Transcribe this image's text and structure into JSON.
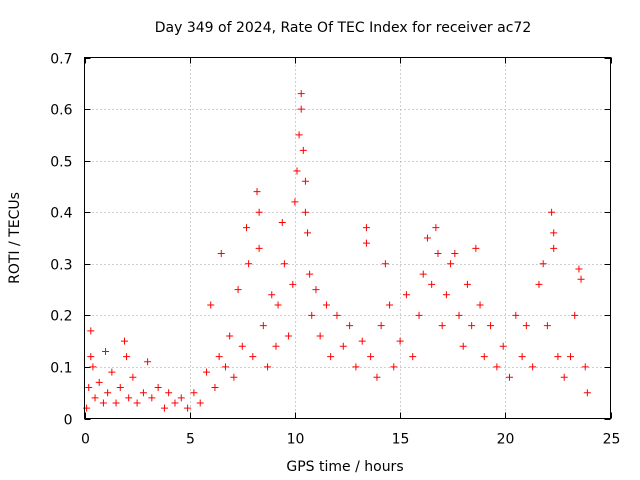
{
  "chart_data": {
    "type": "scatter",
    "title": "Day 349 of 2024, Rate Of TEC Index for receiver ac72",
    "xlabel": "GPS time / hours",
    "ylabel": "ROTI / TECUs",
    "xlim": [
      0,
      25
    ],
    "ylim": [
      0,
      0.7
    ],
    "x_ticks": [
      0,
      5,
      10,
      15,
      20,
      25
    ],
    "x_tick_labels": [
      "0",
      "5",
      "10",
      "15",
      "20",
      "25"
    ],
    "y_ticks": [
      0,
      0.1,
      0.2,
      0.3,
      0.4,
      0.5,
      0.6,
      0.7
    ],
    "y_tick_labels": [
      "0",
      "0.1",
      "0.2",
      "0.3",
      "0.4",
      "0.5",
      "0.6",
      "0.7"
    ],
    "grid": true,
    "marker": "plus",
    "series": [
      {
        "name": "ROTI",
        "color": "#ff0000",
        "points": [
          [
            0.1,
            0.02
          ],
          [
            0.2,
            0.06
          ],
          [
            0.3,
            0.12
          ],
          [
            0.3,
            0.17
          ],
          [
            0.4,
            0.1
          ],
          [
            0.5,
            0.04
          ],
          [
            0.7,
            0.07
          ],
          [
            0.9,
            0.03
          ],
          [
            1.0,
            0.13
          ],
          [
            1.1,
            0.05
          ],
          [
            1.3,
            0.09
          ],
          [
            1.5,
            0.03
          ],
          [
            1.7,
            0.06
          ],
          [
            1.9,
            0.15
          ],
          [
            2.0,
            0.12
          ],
          [
            2.1,
            0.04
          ],
          [
            2.3,
            0.08
          ],
          [
            2.5,
            0.03
          ],
          [
            2.8,
            0.05
          ],
          [
            3.0,
            0.11
          ],
          [
            3.2,
            0.04
          ],
          [
            3.5,
            0.06
          ],
          [
            3.8,
            0.02
          ],
          [
            4.0,
            0.05
          ],
          [
            4.3,
            0.03
          ],
          [
            4.6,
            0.04
          ],
          [
            4.9,
            0.02
          ],
          [
            5.2,
            0.05
          ],
          [
            5.5,
            0.03
          ],
          [
            5.8,
            0.09
          ],
          [
            6.0,
            0.22
          ],
          [
            6.2,
            0.06
          ],
          [
            6.4,
            0.12
          ],
          [
            6.5,
            0.32
          ],
          [
            6.7,
            0.1
          ],
          [
            6.9,
            0.16
          ],
          [
            7.1,
            0.08
          ],
          [
            7.3,
            0.25
          ],
          [
            7.5,
            0.14
          ],
          [
            7.7,
            0.37
          ],
          [
            7.8,
            0.3
          ],
          [
            8.0,
            0.12
          ],
          [
            8.2,
            0.44
          ],
          [
            8.3,
            0.4
          ],
          [
            8.3,
            0.33
          ],
          [
            8.5,
            0.18
          ],
          [
            8.7,
            0.1
          ],
          [
            8.9,
            0.24
          ],
          [
            9.1,
            0.14
          ],
          [
            9.2,
            0.22
          ],
          [
            9.4,
            0.38
          ],
          [
            9.5,
            0.3
          ],
          [
            9.7,
            0.16
          ],
          [
            9.9,
            0.26
          ],
          [
            10.0,
            0.42
          ],
          [
            10.1,
            0.48
          ],
          [
            10.2,
            0.55
          ],
          [
            10.3,
            0.6
          ],
          [
            10.3,
            0.63
          ],
          [
            10.4,
            0.52
          ],
          [
            10.5,
            0.46
          ],
          [
            10.5,
            0.4
          ],
          [
            10.6,
            0.36
          ],
          [
            10.7,
            0.28
          ],
          [
            10.8,
            0.2
          ],
          [
            11.0,
            0.25
          ],
          [
            11.2,
            0.16
          ],
          [
            11.5,
            0.22
          ],
          [
            11.7,
            0.12
          ],
          [
            12.0,
            0.2
          ],
          [
            12.3,
            0.14
          ],
          [
            12.6,
            0.18
          ],
          [
            12.9,
            0.1
          ],
          [
            13.2,
            0.15
          ],
          [
            13.4,
            0.37
          ],
          [
            13.4,
            0.34
          ],
          [
            13.6,
            0.12
          ],
          [
            13.9,
            0.08
          ],
          [
            14.1,
            0.18
          ],
          [
            14.3,
            0.3
          ],
          [
            14.5,
            0.22
          ],
          [
            14.7,
            0.1
          ],
          [
            15.0,
            0.15
          ],
          [
            15.3,
            0.24
          ],
          [
            15.6,
            0.12
          ],
          [
            15.9,
            0.2
          ],
          [
            16.1,
            0.28
          ],
          [
            16.3,
            0.35
          ],
          [
            16.5,
            0.26
          ],
          [
            16.7,
            0.37
          ],
          [
            16.8,
            0.32
          ],
          [
            17.0,
            0.18
          ],
          [
            17.2,
            0.24
          ],
          [
            17.4,
            0.3
          ],
          [
            17.6,
            0.32
          ],
          [
            17.8,
            0.2
          ],
          [
            18.0,
            0.14
          ],
          [
            18.2,
            0.26
          ],
          [
            18.4,
            0.18
          ],
          [
            18.6,
            0.33
          ],
          [
            18.8,
            0.22
          ],
          [
            19.0,
            0.12
          ],
          [
            19.3,
            0.18
          ],
          [
            19.6,
            0.1
          ],
          [
            19.9,
            0.14
          ],
          [
            20.2,
            0.08
          ],
          [
            20.5,
            0.2
          ],
          [
            20.8,
            0.12
          ],
          [
            21.0,
            0.18
          ],
          [
            21.3,
            0.1
          ],
          [
            21.6,
            0.26
          ],
          [
            21.8,
            0.3
          ],
          [
            22.0,
            0.18
          ],
          [
            22.2,
            0.4
          ],
          [
            22.3,
            0.36
          ],
          [
            22.3,
            0.33
          ],
          [
            22.5,
            0.12
          ],
          [
            22.8,
            0.08
          ],
          [
            23.1,
            0.12
          ],
          [
            23.3,
            0.2
          ],
          [
            23.5,
            0.29
          ],
          [
            23.6,
            0.27
          ],
          [
            23.8,
            0.1
          ],
          [
            23.9,
            0.05
          ]
        ]
      }
    ]
  }
}
